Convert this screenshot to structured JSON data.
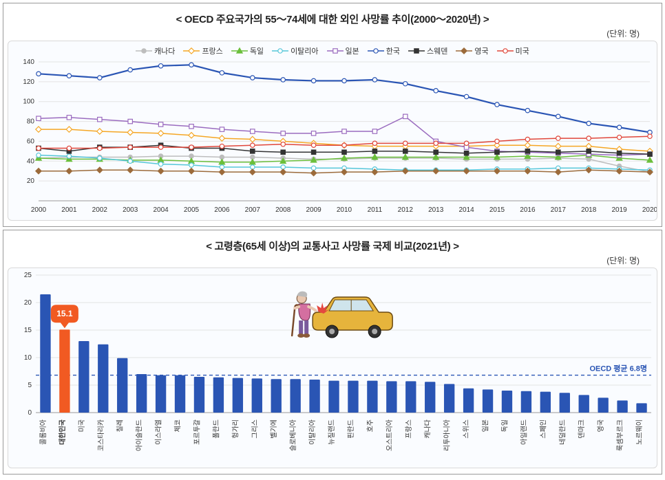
{
  "line_chart": {
    "title": "< OECD 주요국가의 55～74세에 대한 외인 사망률 추이(2000～2020년) >",
    "unit": "(단위: 명)",
    "type": "line",
    "background_color": "#fafcff",
    "grid_color": "#e3e3e3",
    "years": [
      2000,
      2001,
      2002,
      2003,
      2004,
      2005,
      2006,
      2007,
      2008,
      2009,
      2010,
      2011,
      2012,
      2013,
      2014,
      2015,
      2016,
      2017,
      2018,
      2019,
      2020
    ],
    "ylim": [
      0,
      140
    ],
    "ytick_step": 20,
    "series": [
      {
        "name": "캐나다",
        "marker": "circle",
        "marker_fill": "#bdbdbd",
        "line_color": "#bdbdbd",
        "values": [
          43,
          44,
          44,
          44,
          45,
          45,
          44,
          44,
          43,
          42,
          42,
          43,
          43,
          43,
          42,
          42,
          42,
          43,
          42,
          35,
          29
        ]
      },
      {
        "name": "프랑스",
        "marker": "diamond",
        "marker_fill": "#ffffff",
        "line_color": "#f5a623",
        "values": [
          72,
          72,
          70,
          69,
          68,
          66,
          63,
          62,
          60,
          58,
          56,
          55,
          55,
          55,
          55,
          56,
          56,
          55,
          55,
          52,
          50
        ]
      },
      {
        "name": "독일",
        "marker": "triangle",
        "marker_fill": "#6bbf3b",
        "line_color": "#6bbf3b",
        "values": [
          43,
          42,
          42,
          41,
          41,
          40,
          39,
          39,
          40,
          41,
          43,
          44,
          44,
          44,
          44,
          44,
          45,
          44,
          46,
          43,
          41
        ]
      },
      {
        "name": "이탈리아",
        "marker": "circle",
        "marker_fill": "#ffffff",
        "line_color": "#55c6d9",
        "values": [
          46,
          45,
          43,
          40,
          37,
          36,
          34,
          34,
          34,
          33,
          33,
          32,
          31,
          31,
          31,
          32,
          32,
          33,
          33,
          32,
          31
        ]
      },
      {
        "name": "일본",
        "marker": "square",
        "marker_fill": "#ffffff",
        "line_color": "#9a6bbf",
        "values": [
          83,
          84,
          82,
          80,
          77,
          75,
          72,
          70,
          68,
          68,
          70,
          70,
          85,
          60,
          54,
          50,
          49,
          48,
          47,
          46,
          47
        ]
      },
      {
        "name": "한국",
        "marker": "circle",
        "marker_fill": "#ffffff",
        "line_color": "#2a55b4",
        "values": [
          128,
          126,
          124,
          132,
          136,
          137,
          129,
          124,
          122,
          121,
          121,
          122,
          118,
          111,
          105,
          97,
          91,
          85,
          78,
          74,
          69
        ]
      },
      {
        "name": "스웨덴",
        "marker": "square",
        "marker_fill": "#333333",
        "line_color": "#333333",
        "values": [
          53,
          50,
          54,
          54,
          56,
          53,
          53,
          50,
          49,
          49,
          49,
          50,
          50,
          49,
          48,
          49,
          50,
          49,
          50,
          48,
          47
        ]
      },
      {
        "name": "영국",
        "marker": "diamond",
        "marker_fill": "#9c6b3b",
        "line_color": "#9c6b3b",
        "values": [
          30,
          30,
          31,
          31,
          30,
          30,
          29,
          29,
          29,
          28,
          29,
          29,
          30,
          30,
          30,
          30,
          30,
          29,
          31,
          30,
          29
        ]
      },
      {
        "name": "미국",
        "marker": "circle",
        "marker_fill": "#ffffff",
        "line_color": "#e0463a",
        "values": [
          53,
          53,
          53,
          54,
          54,
          54,
          55,
          56,
          57,
          56,
          56,
          58,
          58,
          58,
          58,
          60,
          62,
          63,
          63,
          64,
          65
        ]
      }
    ]
  },
  "bar_chart": {
    "title": "< 고령층(65세 이상)의 교통사고 사망률 국제 비교(2021년) >",
    "unit": "(단위: 명)",
    "type": "bar",
    "background_color": "#fafcff",
    "grid_color": "#e3e3e3",
    "ylim": [
      0,
      25
    ],
    "ytick_step": 5,
    "avg_label": "OECD 평균 6.8명",
    "avg_value": 6.8,
    "avg_line_color": "#2a55b4",
    "highlight_color": "#f15a22",
    "bar_color": "#2a55b4",
    "highlight_label": "15.1",
    "highlight_index": 1,
    "categories": [
      "콜롬비아",
      "대한민국",
      "미국",
      "코스타리카",
      "칠레",
      "아이슬란드",
      "이스라엘",
      "체코",
      "포르투갈",
      "폴란드",
      "헝가리",
      "그리스",
      "벨기에",
      "슬로베니아",
      "이탈리아",
      "뉴질랜드",
      "핀란드",
      "호주",
      "오스트리아",
      "프랑스",
      "캐나다",
      "리투아니아",
      "스위스",
      "일본",
      "독일",
      "아일랜드",
      "스페인",
      "네덜란드",
      "덴마크",
      "영국",
      "룩셈부르크",
      "노르웨이"
    ],
    "values": [
      21.5,
      15.1,
      13.0,
      12.4,
      9.9,
      7.0,
      6.8,
      6.8,
      6.5,
      6.4,
      6.3,
      6.2,
      6.1,
      6.1,
      6.0,
      5.8,
      5.8,
      5.8,
      5.7,
      5.7,
      5.6,
      5.2,
      4.4,
      4.2,
      4.0,
      3.9,
      3.8,
      3.6,
      3.2,
      2.7,
      2.2,
      1.7
    ]
  }
}
